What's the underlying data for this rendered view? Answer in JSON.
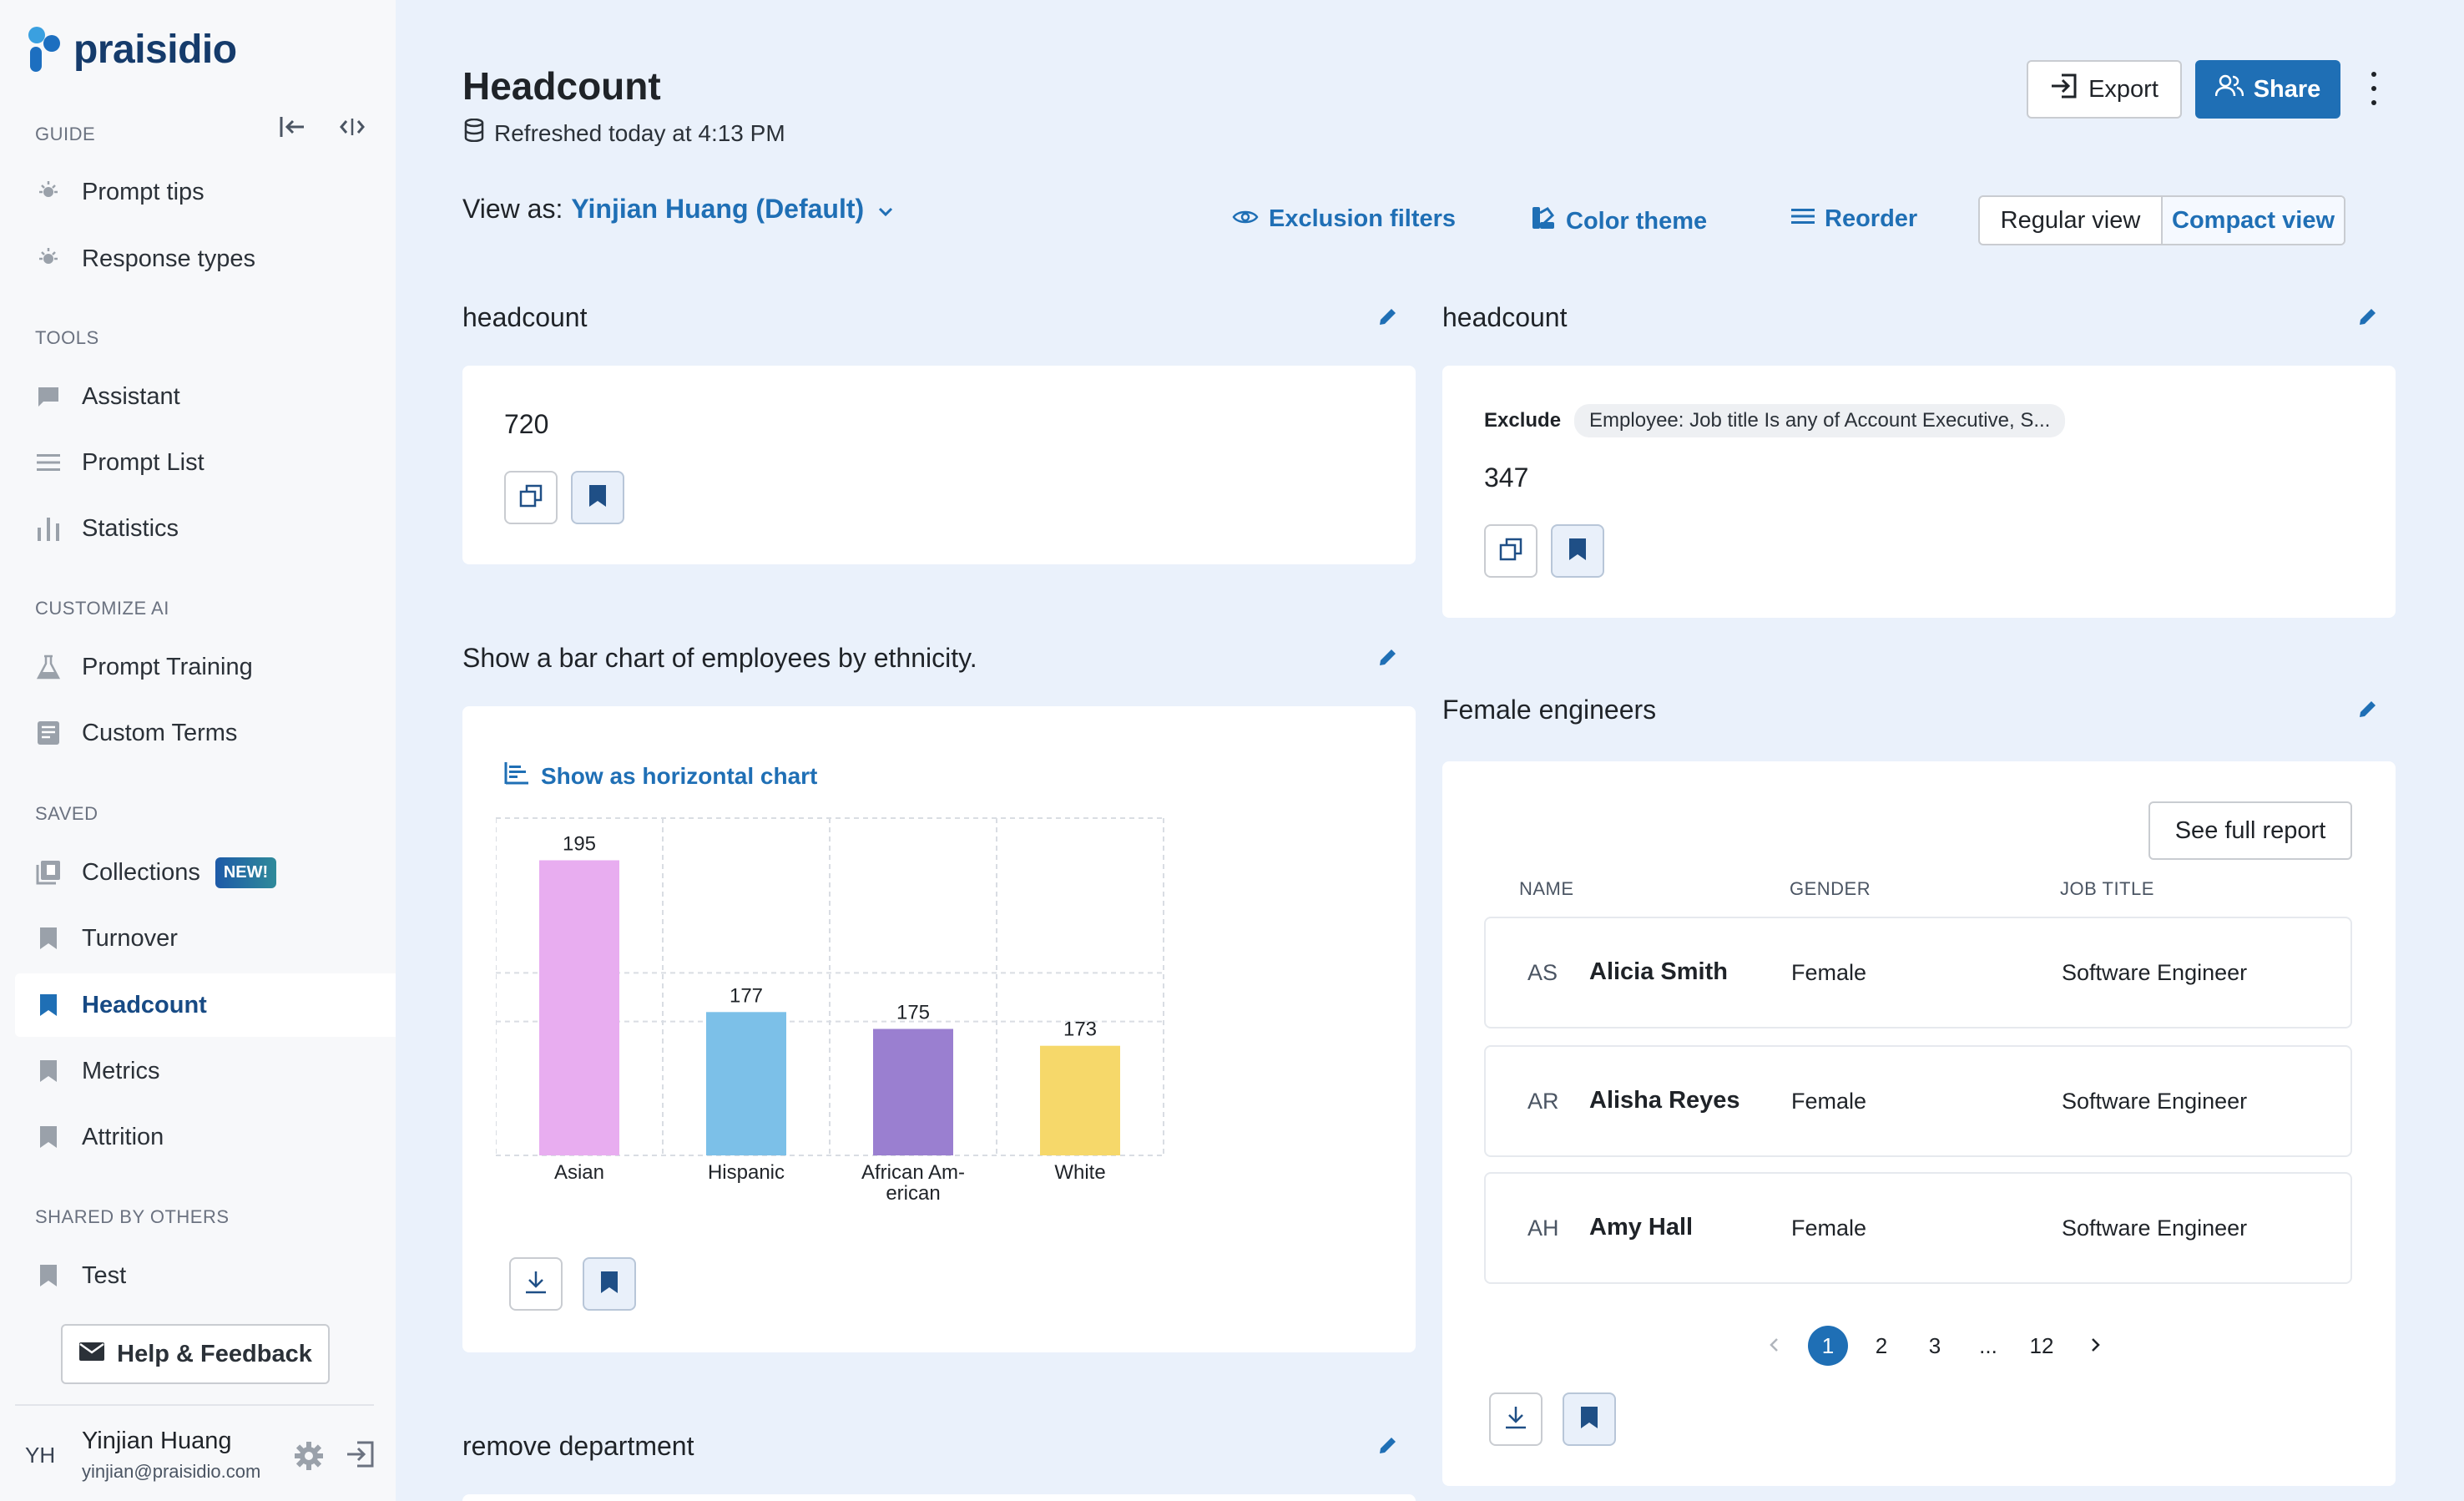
{
  "brand": {
    "name": "praisidio"
  },
  "sidebar": {
    "sections": {
      "guide": "GUIDE",
      "tools": "TOOLS",
      "customize": "CUSTOMIZE AI",
      "saved": "SAVED",
      "shared": "SHARED BY OTHERS"
    },
    "guide_items": [
      {
        "label": "Prompt tips",
        "icon": "lightbulb-icon"
      },
      {
        "label": "Response types",
        "icon": "lightbulb-icon"
      }
    ],
    "tool_items": [
      {
        "label": "Assistant",
        "icon": "chat-icon"
      },
      {
        "label": "Prompt List",
        "icon": "list-icon"
      },
      {
        "label": "Statistics",
        "icon": "bar-chart-icon"
      }
    ],
    "customize_items": [
      {
        "label": "Prompt Training",
        "icon": "flask-icon"
      },
      {
        "label": "Custom Terms",
        "icon": "book-icon"
      }
    ],
    "saved_items": [
      {
        "label": "Collections",
        "icon": "collections-icon",
        "badge": "NEW!"
      },
      {
        "label": "Turnover",
        "icon": "bookmark-icon"
      },
      {
        "label": "Headcount",
        "icon": "bookmark-icon",
        "active": true
      },
      {
        "label": "Metrics",
        "icon": "bookmark-icon"
      },
      {
        "label": "Attrition",
        "icon": "bookmark-icon"
      }
    ],
    "shared_items": [
      {
        "label": "Test",
        "icon": "bookmark-icon"
      }
    ],
    "help_label": "Help & Feedback",
    "user": {
      "initials": "YH",
      "name": "Yinjian Huang",
      "email": "yinjian@praisidio.com"
    }
  },
  "header": {
    "title": "Headcount",
    "refreshed": "Refreshed today at 4:13 PM",
    "export_label": "Export",
    "share_label": "Share",
    "view_as_prefix": "View as:",
    "view_as_user": "Yinjian Huang (Default)",
    "exclusion_filters": "Exclusion filters",
    "color_theme": "Color theme",
    "reorder": "Reorder",
    "regular_view": "Regular view",
    "compact_view": "Compact view"
  },
  "cards": {
    "headcount_left": {
      "title": "headcount",
      "value": "720"
    },
    "headcount_right": {
      "title": "headcount",
      "exclude_label": "Exclude",
      "exclude_chip": "Employee: Job title Is any of Account Executive, S...",
      "value": "347"
    },
    "ethnicity": {
      "title": "Show a bar chart of employees by ethnicity.",
      "toggle_label": "Show as horizontal chart"
    },
    "female_engineers": {
      "title": "Female engineers",
      "see_full": "See full report",
      "columns": [
        "NAME",
        "GENDER",
        "JOB TITLE"
      ],
      "rows": [
        {
          "initials": "AS",
          "name": "Alicia Smith",
          "gender": "Female",
          "job": "Software Engineer"
        },
        {
          "initials": "AR",
          "name": "Alisha Reyes",
          "gender": "Female",
          "job": "Software Engineer"
        },
        {
          "initials": "AH",
          "name": "Amy Hall",
          "gender": "Female",
          "job": "Software Engineer"
        }
      ],
      "pages": [
        "1",
        "2",
        "3",
        "...",
        "12"
      ],
      "current_page": "1"
    },
    "remove_department": {
      "title": "remove department"
    }
  },
  "chart_data": {
    "type": "bar",
    "title": "",
    "categories": [
      "Asian",
      "Hispanic",
      "African Am-erican",
      "White"
    ],
    "category_lines": [
      [
        "Asian"
      ],
      [
        "Hispanic"
      ],
      [
        "African Am-",
        "erican"
      ],
      [
        "White"
      ]
    ],
    "values": [
      195,
      177,
      175,
      173
    ],
    "value_labels": [
      "195",
      "177",
      "175",
      "173"
    ],
    "colors": [
      "#e8adf0",
      "#7cc0e8",
      "#9a7fd0",
      "#f6d86a"
    ],
    "grid": true,
    "ylim": [
      160,
      200
    ]
  }
}
